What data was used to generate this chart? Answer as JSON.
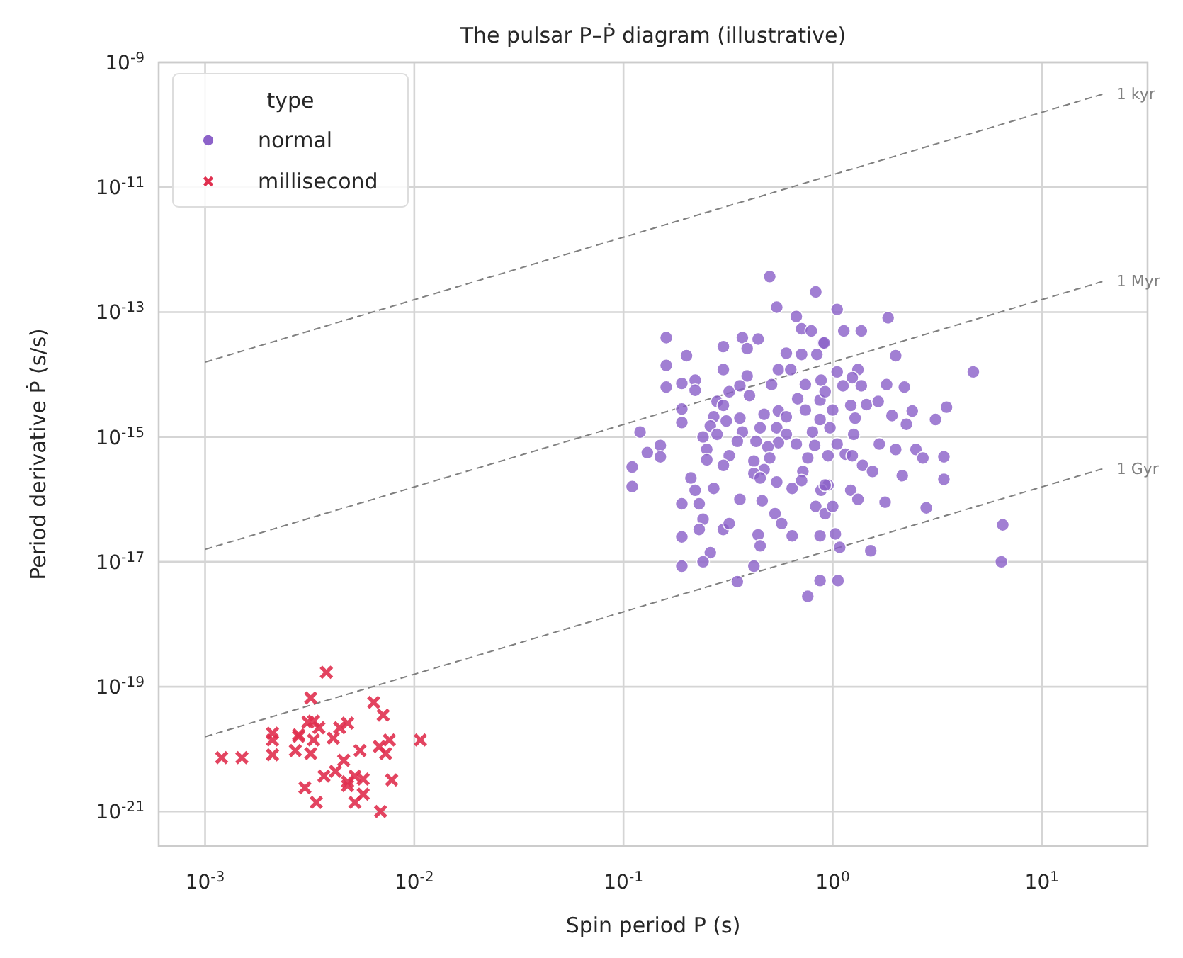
{
  "chart_data": {
    "type": "scatter",
    "title": "The pulsar P–Ṗ diagram (illustrative)",
    "xlabel": "Spin period  P  (s)",
    "ylabel": "Period derivative  Ṗ  (s/s)",
    "log": "xy",
    "grid": true,
    "legend": "top left",
    "legend_title": "type",
    "xlim": [
      0.0006,
      32
    ],
    "ylim": [
      2.8e-22,
      1e-09
    ],
    "xticks": [
      {
        "value": 0.001,
        "label": "10$^{-3}$"
      },
      {
        "value": 0.01,
        "label": "10$^{-2}$"
      },
      {
        "value": 0.1,
        "label": "10$^{-1}$"
      },
      {
        "value": 1,
        "label": "10$^{0}$"
      },
      {
        "value": 10,
        "label": "10$^{1}$"
      }
    ],
    "yticks": [
      {
        "value": 1e-21,
        "label": "10$^{-21}$"
      },
      {
        "value": 1e-19,
        "label": "10$^{-19}$"
      },
      {
        "value": 1e-17,
        "label": "10$^{-17}$"
      },
      {
        "value": 1e-15,
        "label": "10$^{-15}$"
      },
      {
        "value": 1e-13,
        "label": "10$^{-13}$"
      },
      {
        "value": 1e-11,
        "label": "10$^{-11}$"
      },
      {
        "value": 1e-09,
        "label": "10$^{-9}$"
      }
    ],
    "series": [
      {
        "name": "1 kyr",
        "type": "line",
        "color": "#808080",
        "line_style": "dashed",
        "x": [
          0.001,
          20
        ],
        "values": [
          1.58e-14,
          3.17e-10
        ]
      },
      {
        "name": "1 Myr",
        "type": "line",
        "color": "#808080",
        "line_style": "dashed",
        "x": [
          0.001,
          20
        ],
        "values": [
          1.58e-17,
          3.17e-13
        ]
      },
      {
        "name": "1 Gyr",
        "type": "line",
        "color": "#808080",
        "line_style": "dashed",
        "x": [
          0.001,
          20
        ],
        "values": [
          1.58e-20,
          3.17e-16
        ]
      },
      {
        "name": "normal",
        "color": "#8c62c9",
        "marker": "circle",
        "x": [
          0.5,
          0.83,
          0.54,
          0.67,
          0.71,
          0.79,
          0.16,
          0.37,
          0.44,
          0.3,
          0.39,
          0.9,
          0.6,
          0.71,
          0.2,
          0.84,
          0.16,
          0.3,
          0.55,
          0.63,
          0.19,
          0.22,
          0.39,
          0.74,
          0.16,
          0.22,
          0.51,
          0.88,
          0.32,
          0.4,
          0.36,
          0.68,
          0.28,
          0.19,
          0.3,
          0.87,
          0.47,
          0.55,
          0.74,
          0.27,
          0.36,
          0.19,
          0.31,
          0.6,
          0.87,
          0.26,
          0.45,
          0.12,
          0.24,
          0.28,
          0.37,
          0.54,
          0.6,
          0.8,
          0.97,
          0.43,
          0.35,
          0.55,
          0.67,
          0.82,
          0.15,
          0.13,
          0.25,
          0.32,
          0.49,
          0.76,
          0.15,
          0.95,
          0.25,
          0.42,
          0.5,
          0.72,
          0.11,
          0.3,
          0.47,
          0.42,
          0.21,
          0.45,
          0.11,
          0.22,
          0.27,
          0.54,
          0.64,
          0.71,
          0.95,
          0.88,
          0.19,
          0.23,
          0.36,
          0.46,
          0.53,
          0.83,
          0.92,
          0.24,
          0.23,
          0.3,
          0.32,
          0.57,
          0.19,
          0.44,
          0.64,
          0.87,
          0.45,
          0.26,
          0.19,
          0.24,
          0.42,
          0.35,
          0.87,
          0.76,
          1.05,
          1.84,
          1.13,
          1.37,
          0.91,
          2.0,
          1.05,
          1.32,
          4.7,
          1.24,
          1.12,
          1.37,
          1.81,
          2.2,
          0.92,
          1.22,
          1.45,
          1.65,
          1.0,
          2.4,
          3.5,
          1.28,
          1.92,
          2.25,
          3.1,
          1.26,
          1.05,
          1.67,
          2.0,
          2.5,
          2.7,
          3.4,
          1.15,
          1.24,
          1.39,
          1.55,
          2.15,
          3.4,
          0.92,
          1.22,
          1.32,
          1.78,
          2.8,
          1.0,
          1.03,
          6.5,
          1.08,
          1.52,
          6.4,
          1.06
        ],
        "values": [
          3.7e-13,
          2.1e-13,
          1.2e-13,
          8.5e-14,
          5.4e-14,
          5e-14,
          3.9e-14,
          3.9e-14,
          3.7e-14,
          2.8e-14,
          2.6e-14,
          3.2e-14,
          2.2e-14,
          2.1e-14,
          2e-14,
          2.1e-14,
          1.4e-14,
          1.2e-14,
          1.2e-14,
          1.2e-14,
          7.2e-15,
          8.1e-15,
          9.5e-15,
          6.9e-15,
          6.3e-15,
          5.6e-15,
          6.9e-15,
          8.1e-15,
          5.3e-15,
          4.6e-15,
          6.6e-15,
          4.1e-15,
          3.7e-15,
          2.8e-15,
          3.2e-15,
          3.9e-15,
          2.3e-15,
          2.6e-15,
          2.7e-15,
          2.1e-15,
          2e-15,
          1.7e-15,
          1.8e-15,
          2.1e-15,
          1.9e-15,
          1.5e-15,
          1.4e-15,
          1.2e-15,
          1e-15,
          1.1e-15,
          1.2e-15,
          1.4e-15,
          1.1e-15,
          1.2e-15,
          1.4e-15,
          8.5e-16,
          8.5e-16,
          8.1e-16,
          7.7e-16,
          7.3e-16,
          7.3e-16,
          5.6e-16,
          6.3e-16,
          5e-16,
          6.9e-16,
          4.6e-16,
          4.8e-16,
          5e-16,
          4.3e-16,
          4.1e-16,
          4.6e-16,
          2.8e-16,
          3.3e-16,
          3.5e-16,
          3e-16,
          2.6e-16,
          2.2e-16,
          2.2e-16,
          1.6e-16,
          1.4e-16,
          1.5e-16,
          1.9e-16,
          1.5e-16,
          2e-16,
          1.7e-16,
          1.4e-16,
          8.5e-17,
          8.5e-17,
          1e-16,
          9.5e-17,
          5.9e-17,
          7.7e-17,
          5.9e-17,
          4.8e-17,
          3.3e-17,
          3.3e-17,
          4.1e-17,
          4.1e-17,
          2.5e-17,
          2.7e-17,
          2.6e-17,
          2.6e-17,
          1.8e-17,
          1.4e-17,
          8.5e-18,
          1e-17,
          8.5e-18,
          4.8e-18,
          5e-18,
          2.8e-18,
          1.1e-13,
          8.1e-14,
          5e-14,
          5e-14,
          3.2e-14,
          2e-14,
          1.1e-14,
          1.2e-14,
          1.1e-14,
          8.9e-15,
          6.6e-15,
          6.6e-15,
          6.9e-15,
          6.3e-15,
          5.3e-15,
          3.2e-15,
          3.3e-15,
          3.7e-15,
          2.7e-15,
          2.6e-15,
          3e-15,
          2e-15,
          2.2e-15,
          1.6e-15,
          1.9e-15,
          1.1e-15,
          7.7e-16,
          7.7e-16,
          6.3e-16,
          6.3e-16,
          4.6e-16,
          4.8e-16,
          5.3e-16,
          5e-16,
          3.5e-16,
          2.8e-16,
          2.4e-16,
          2.1e-16,
          1.7e-16,
          1.4e-16,
          1e-16,
          9e-17,
          7.3e-17,
          7.7e-17,
          2.8e-17,
          3.9e-17,
          1.7e-17,
          1.5e-17,
          1e-17,
          5e-18
        ]
      },
      {
        "name": "millisecond",
        "color": "#e0304f",
        "marker": "cross",
        "x": [
          0.0038,
          0.0032,
          0.0064,
          0.0071,
          0.0021,
          0.0021,
          0.0033,
          0.0031,
          0.0035,
          0.0028,
          0.0033,
          0.0044,
          0.0048,
          0.0041,
          0.0076,
          0.0068,
          0.0107,
          0.0012,
          0.0015,
          0.0021,
          0.0027,
          0.0032,
          0.0055,
          0.0073,
          0.0046,
          0.0037,
          0.0042,
          0.0048,
          0.0052,
          0.0057,
          0.0078,
          0.0048,
          0.003,
          0.0057,
          0.0034,
          0.0052,
          0.0069,
          0.0028
        ],
        "values": [
          1.7e-19,
          6.6e-20,
          5.6e-20,
          3.5e-20,
          1.8e-20,
          1.4e-20,
          2.8e-20,
          2.7e-20,
          2.2e-20,
          1.7e-20,
          1.4e-20,
          2.2e-20,
          2.6e-20,
          1.5e-20,
          1.4e-20,
          1.1e-20,
          1.4e-20,
          7.3e-21,
          7.3e-21,
          8.1e-21,
          9.5e-21,
          8.5e-21,
          9.5e-21,
          8.5e-21,
          6.6e-21,
          3.7e-21,
          4.4e-21,
          3e-21,
          3.7e-21,
          3.3e-21,
          3.2e-21,
          2.6e-21,
          2.4e-21,
          1.9e-21,
          1.4e-21,
          1.4e-21,
          1e-21,
          1.6e-20
        ]
      }
    ]
  }
}
